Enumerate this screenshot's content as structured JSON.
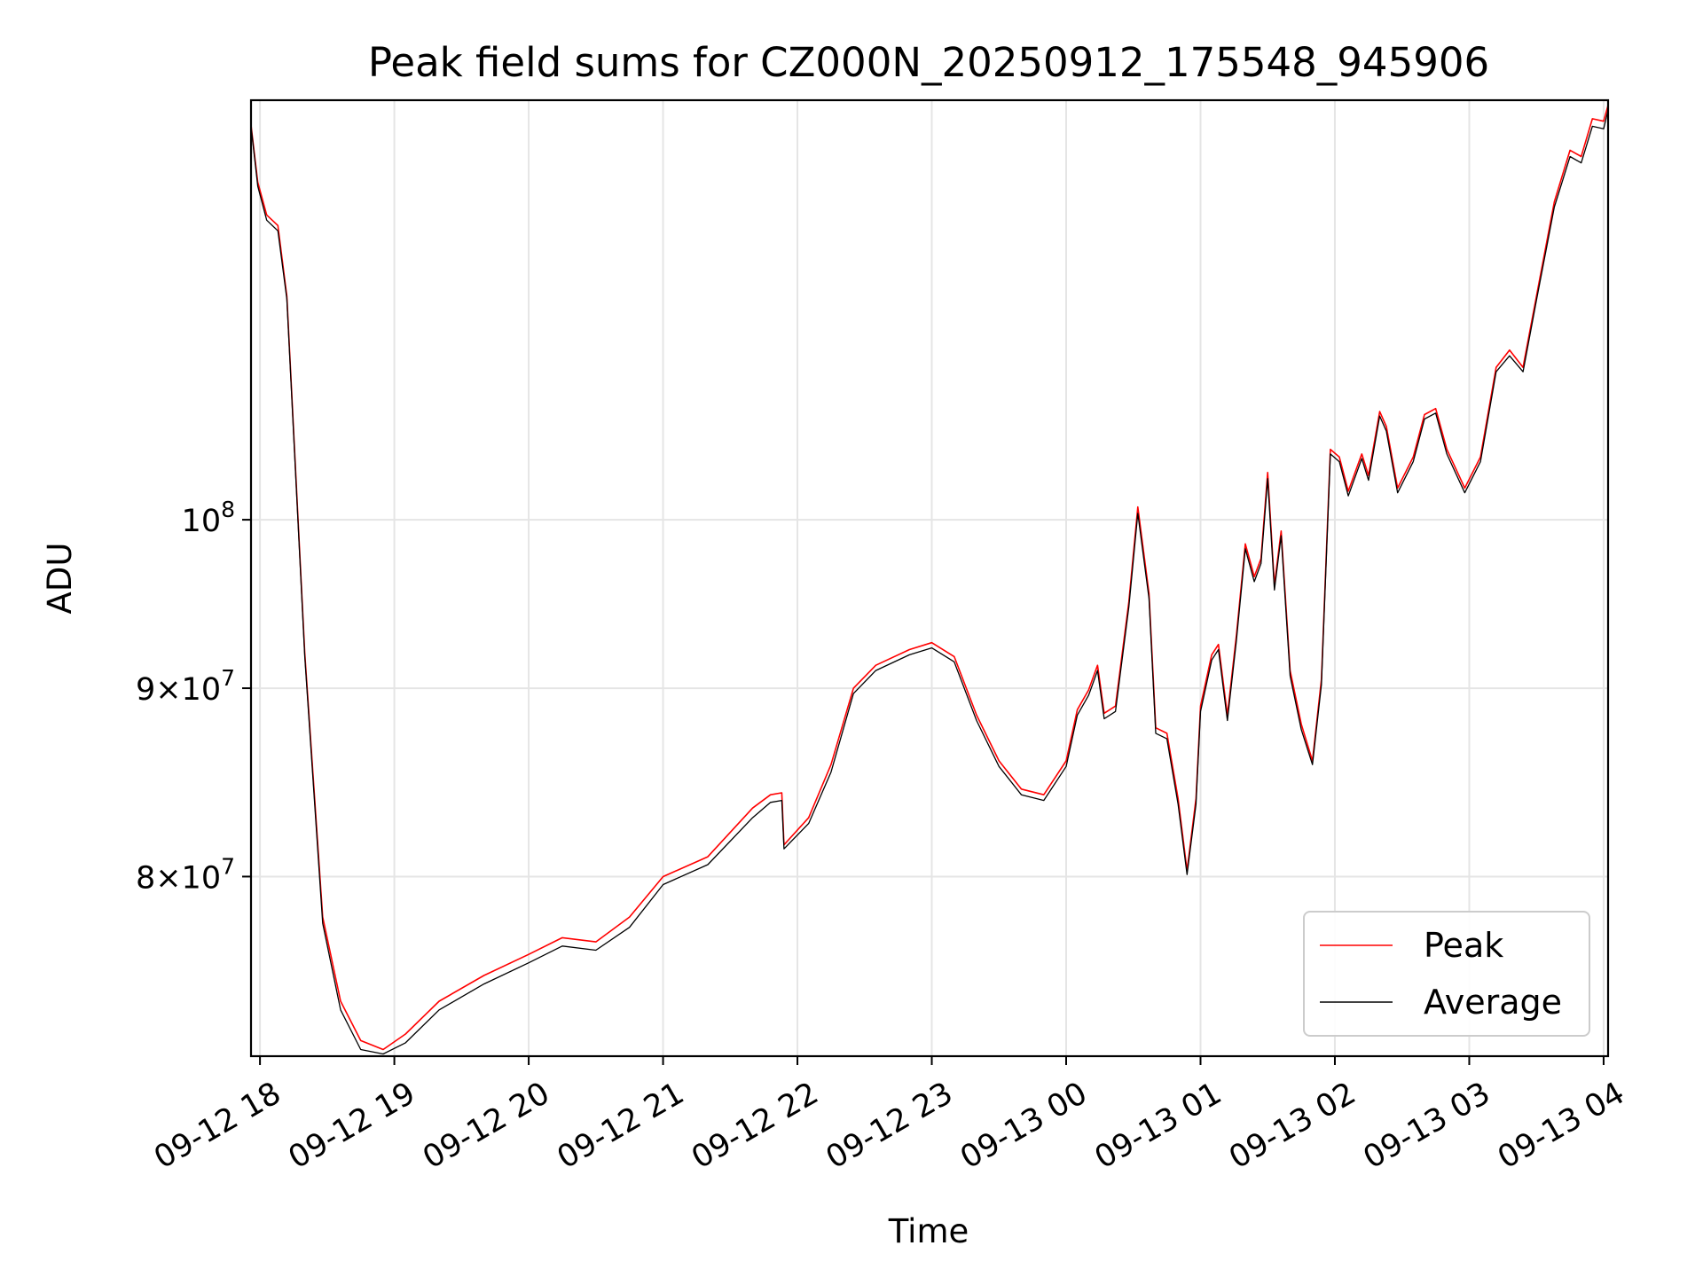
{
  "chart_data": {
    "type": "line",
    "title": "Peak field sums for CZ000N_20250912_175548_945906",
    "xlabel": "Time",
    "ylabel": "ADU",
    "y_scale": "log",
    "ylim": [
      71500000,
      130000000
    ],
    "xlim": [
      "2025-09-12 17:56",
      "2025-09-13 04:02"
    ],
    "x_ticks": [
      {
        "t": "2025-09-12 18:00",
        "label": "09-12 18"
      },
      {
        "t": "2025-09-12 19:00",
        "label": "09-12 19"
      },
      {
        "t": "2025-09-12 20:00",
        "label": "09-12 20"
      },
      {
        "t": "2025-09-12 21:00",
        "label": "09-12 21"
      },
      {
        "t": "2025-09-12 22:00",
        "label": "09-12 22"
      },
      {
        "t": "2025-09-12 23:00",
        "label": "09-12 23"
      },
      {
        "t": "2025-09-13 00:00",
        "label": "09-13 00"
      },
      {
        "t": "2025-09-13 01:00",
        "label": "09-13 01"
      },
      {
        "t": "2025-09-13 02:00",
        "label": "09-13 02"
      },
      {
        "t": "2025-09-13 03:00",
        "label": "09-13 03"
      },
      {
        "t": "2025-09-13 04:00",
        "label": "09-13 04"
      }
    ],
    "y_ticks": [
      {
        "value": 80000000,
        "base": "8",
        "exp": "7"
      },
      {
        "value": 90000000,
        "base": "9",
        "exp": "7"
      },
      {
        "value": 100000000,
        "base": "10",
        "exp": "8"
      }
    ],
    "grid": true,
    "legend_position": "lower-right",
    "series": [
      {
        "name": "Peak",
        "color": "#ff0000",
        "points": [
          [
            "2025-09-12 17:56",
            128000000
          ],
          [
            "2025-09-12 17:59",
            123500000
          ],
          [
            "2025-09-12 18:03",
            121000000
          ],
          [
            "2025-09-12 18:08",
            120200000
          ],
          [
            "2025-09-12 18:12",
            115000000
          ],
          [
            "2025-09-12 18:20",
            92000000
          ],
          [
            "2025-09-12 18:28",
            78000000
          ],
          [
            "2025-09-12 18:36",
            74000000
          ],
          [
            "2025-09-12 18:45",
            72200000
          ],
          [
            "2025-09-12 18:55",
            71800000
          ],
          [
            "2025-09-12 19:05",
            72500000
          ],
          [
            "2025-09-12 19:20",
            74000000
          ],
          [
            "2025-09-12 19:40",
            75200000
          ],
          [
            "2025-09-12 20:00",
            76200000
          ],
          [
            "2025-09-12 20:15",
            77000000
          ],
          [
            "2025-09-12 20:30",
            76800000
          ],
          [
            "2025-09-12 20:45",
            78000000
          ],
          [
            "2025-09-12 21:00",
            80000000
          ],
          [
            "2025-09-12 21:20",
            81000000
          ],
          [
            "2025-09-12 21:40",
            83500000
          ],
          [
            "2025-09-12 21:48",
            84200000
          ],
          [
            "2025-09-12 21:53",
            84300000
          ],
          [
            "2025-09-12 21:54",
            81600000
          ],
          [
            "2025-09-12 22:05",
            83000000
          ],
          [
            "2025-09-12 22:15",
            85800000
          ],
          [
            "2025-09-12 22:25",
            90000000
          ],
          [
            "2025-09-12 22:35",
            91300000
          ],
          [
            "2025-09-12 22:50",
            92200000
          ],
          [
            "2025-09-12 23:00",
            92600000
          ],
          [
            "2025-09-12 23:10",
            91800000
          ],
          [
            "2025-09-12 23:20",
            88500000
          ],
          [
            "2025-09-12 23:30",
            86000000
          ],
          [
            "2025-09-12 23:40",
            84500000
          ],
          [
            "2025-09-12 23:50",
            84200000
          ],
          [
            "2025-09-13 00:00",
            86000000
          ],
          [
            "2025-09-13 00:05",
            88800000
          ],
          [
            "2025-09-13 00:10",
            89900000
          ],
          [
            "2025-09-13 00:14",
            91300000
          ],
          [
            "2025-09-13 00:17",
            88600000
          ],
          [
            "2025-09-13 00:22",
            89000000
          ],
          [
            "2025-09-13 00:28",
            95000000
          ],
          [
            "2025-09-13 00:32",
            100800000
          ],
          [
            "2025-09-13 00:37",
            95500000
          ],
          [
            "2025-09-13 00:40",
            87800000
          ],
          [
            "2025-09-13 00:45",
            87500000
          ],
          [
            "2025-09-13 00:50",
            84000000
          ],
          [
            "2025-09-13 00:54",
            80300000
          ],
          [
            "2025-09-13 00:58",
            84000000
          ],
          [
            "2025-09-13 01:00",
            89000000
          ],
          [
            "2025-09-13 01:05",
            91900000
          ],
          [
            "2025-09-13 01:08",
            92500000
          ],
          [
            "2025-09-13 01:12",
            88500000
          ],
          [
            "2025-09-13 01:16",
            93000000
          ],
          [
            "2025-09-13 01:20",
            98500000
          ],
          [
            "2025-09-13 01:24",
            96500000
          ],
          [
            "2025-09-13 01:27",
            97600000
          ],
          [
            "2025-09-13 01:30",
            103000000
          ],
          [
            "2025-09-13 01:33",
            96000000
          ],
          [
            "2025-09-13 01:36",
            99300000
          ],
          [
            "2025-09-13 01:40",
            91000000
          ],
          [
            "2025-09-13 01:45",
            88000000
          ],
          [
            "2025-09-13 01:50",
            86000000
          ],
          [
            "2025-09-13 01:54",
            90500000
          ],
          [
            "2025-09-13 01:58",
            104500000
          ],
          [
            "2025-09-13 02:02",
            104000000
          ],
          [
            "2025-09-13 02:06",
            101800000
          ],
          [
            "2025-09-13 02:12",
            104200000
          ],
          [
            "2025-09-13 02:15",
            102800000
          ],
          [
            "2025-09-13 02:20",
            107000000
          ],
          [
            "2025-09-13 02:23",
            106000000
          ],
          [
            "2025-09-13 02:28",
            102000000
          ],
          [
            "2025-09-13 02:35",
            104000000
          ],
          [
            "2025-09-13 02:40",
            106800000
          ],
          [
            "2025-09-13 02:45",
            107200000
          ],
          [
            "2025-09-13 02:50",
            104500000
          ],
          [
            "2025-09-13 02:58",
            102000000
          ],
          [
            "2025-09-13 03:05",
            104000000
          ],
          [
            "2025-09-13 03:12",
            110000000
          ],
          [
            "2025-09-13 03:18",
            111200000
          ],
          [
            "2025-09-13 03:24",
            110000000
          ],
          [
            "2025-09-13 03:30",
            115000000
          ],
          [
            "2025-09-13 03:38",
            122000000
          ],
          [
            "2025-09-13 03:45",
            126000000
          ],
          [
            "2025-09-13 03:50",
            125500000
          ],
          [
            "2025-09-13 03:55",
            128500000
          ],
          [
            "2025-09-13 04:00",
            128300000
          ],
          [
            "2025-09-13 04:02",
            129600000
          ]
        ]
      },
      {
        "name": "Average",
        "color": "#000000",
        "points": [
          [
            "2025-09-12 17:56",
            127900000
          ],
          [
            "2025-09-12 17:59",
            123200000
          ],
          [
            "2025-09-12 18:03",
            120600000
          ],
          [
            "2025-09-12 18:08",
            119800000
          ],
          [
            "2025-09-12 18:12",
            114800000
          ],
          [
            "2025-09-12 18:20",
            91800000
          ],
          [
            "2025-09-12 18:28",
            77700000
          ],
          [
            "2025-09-12 18:36",
            73600000
          ],
          [
            "2025-09-12 18:45",
            71800000
          ],
          [
            "2025-09-12 18:55",
            71600000
          ],
          [
            "2025-09-12 19:05",
            72100000
          ],
          [
            "2025-09-12 19:20",
            73600000
          ],
          [
            "2025-09-12 19:40",
            74800000
          ],
          [
            "2025-09-12 20:00",
            75800000
          ],
          [
            "2025-09-12 20:15",
            76600000
          ],
          [
            "2025-09-12 20:30",
            76400000
          ],
          [
            "2025-09-12 20:45",
            77500000
          ],
          [
            "2025-09-12 21:00",
            79600000
          ],
          [
            "2025-09-12 21:20",
            80600000
          ],
          [
            "2025-09-12 21:40",
            83000000
          ],
          [
            "2025-09-12 21:48",
            83800000
          ],
          [
            "2025-09-12 21:53",
            83900000
          ],
          [
            "2025-09-12 21:54",
            81400000
          ],
          [
            "2025-09-12 22:05",
            82700000
          ],
          [
            "2025-09-12 22:15",
            85400000
          ],
          [
            "2025-09-12 22:25",
            89700000
          ],
          [
            "2025-09-12 22:35",
            91000000
          ],
          [
            "2025-09-12 22:50",
            91900000
          ],
          [
            "2025-09-12 23:00",
            92300000
          ],
          [
            "2025-09-12 23:10",
            91500000
          ],
          [
            "2025-09-12 23:20",
            88200000
          ],
          [
            "2025-09-12 23:30",
            85700000
          ],
          [
            "2025-09-12 23:40",
            84200000
          ],
          [
            "2025-09-12 23:50",
            83900000
          ],
          [
            "2025-09-13 00:00",
            85700000
          ],
          [
            "2025-09-13 00:05",
            88500000
          ],
          [
            "2025-09-13 00:10",
            89600000
          ],
          [
            "2025-09-13 00:14",
            91000000
          ],
          [
            "2025-09-13 00:17",
            88300000
          ],
          [
            "2025-09-13 00:22",
            88700000
          ],
          [
            "2025-09-13 00:28",
            94700000
          ],
          [
            "2025-09-13 00:32",
            100400000
          ],
          [
            "2025-09-13 00:37",
            95200000
          ],
          [
            "2025-09-13 00:40",
            87500000
          ],
          [
            "2025-09-13 00:45",
            87200000
          ],
          [
            "2025-09-13 00:50",
            83700000
          ],
          [
            "2025-09-13 00:54",
            80100000
          ],
          [
            "2025-09-13 00:58",
            83700000
          ],
          [
            "2025-09-13 01:00",
            88700000
          ],
          [
            "2025-09-13 01:05",
            91600000
          ],
          [
            "2025-09-13 01:08",
            92200000
          ],
          [
            "2025-09-13 01:12",
            88200000
          ],
          [
            "2025-09-13 01:16",
            92700000
          ],
          [
            "2025-09-13 01:20",
            98200000
          ],
          [
            "2025-09-13 01:24",
            96200000
          ],
          [
            "2025-09-13 01:27",
            97300000
          ],
          [
            "2025-09-13 01:30",
            102600000
          ],
          [
            "2025-09-13 01:33",
            95700000
          ],
          [
            "2025-09-13 01:36",
            99000000
          ],
          [
            "2025-09-13 01:40",
            90700000
          ],
          [
            "2025-09-13 01:45",
            87700000
          ],
          [
            "2025-09-13 01:50",
            85800000
          ],
          [
            "2025-09-13 01:54",
            90200000
          ],
          [
            "2025-09-13 01:58",
            104200000
          ],
          [
            "2025-09-13 02:02",
            103700000
          ],
          [
            "2025-09-13 02:06",
            101500000
          ],
          [
            "2025-09-13 02:12",
            103900000
          ],
          [
            "2025-09-13 02:15",
            102500000
          ],
          [
            "2025-09-13 02:20",
            106700000
          ],
          [
            "2025-09-13 02:23",
            105700000
          ],
          [
            "2025-09-13 02:28",
            101700000
          ],
          [
            "2025-09-13 02:35",
            103700000
          ],
          [
            "2025-09-13 02:40",
            106500000
          ],
          [
            "2025-09-13 02:45",
            106900000
          ],
          [
            "2025-09-13 02:50",
            104200000
          ],
          [
            "2025-09-13 02:58",
            101700000
          ],
          [
            "2025-09-13 03:05",
            103700000
          ],
          [
            "2025-09-13 03:12",
            109700000
          ],
          [
            "2025-09-13 03:18",
            110800000
          ],
          [
            "2025-09-13 03:24",
            109700000
          ],
          [
            "2025-09-13 03:30",
            114700000
          ],
          [
            "2025-09-13 03:38",
            121600000
          ],
          [
            "2025-09-13 03:45",
            125500000
          ],
          [
            "2025-09-13 03:50",
            125000000
          ],
          [
            "2025-09-13 03:55",
            127900000
          ],
          [
            "2025-09-13 04:00",
            127700000
          ],
          [
            "2025-09-13 04:02",
            129200000
          ]
        ]
      }
    ]
  }
}
